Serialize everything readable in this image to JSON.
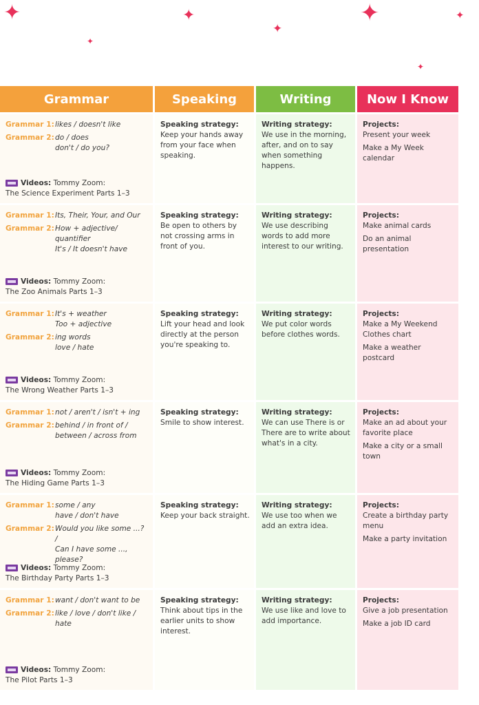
{
  "colors": {
    "grammar": "#f4a13c",
    "speaking": "#f4a13c",
    "writing": "#7dbd43",
    "now_i_know": "#e8315a",
    "sparkle": "#e8315a"
  },
  "headers": {
    "grammar": "Grammar",
    "speaking": "Speaking",
    "writing": "Writing",
    "now_i_know": "Now I Know"
  },
  "rows": [
    {
      "grammar": [
        {
          "label": "Grammar 1:",
          "text": "likes / doesn't like"
        },
        {
          "label": "Grammar 2:",
          "text": "do / does\ndon't / do you?"
        }
      ],
      "videos_label": "Videos:",
      "videos_text": "Tommy Zoom:\nThe Science Experiment Parts 1–3",
      "speaking_head": "Speaking strategy:",
      "speaking_body": "Keep your hands away from your face when speaking.",
      "writing_head": "Writing strategy:",
      "writing_body": "We use in the morning, after, and on to say when something happens.",
      "projects_head": "Projects:",
      "projects": [
        "Present your week",
        "Make a My Week calendar"
      ]
    },
    {
      "grammar": [
        {
          "label": "Grammar 1:",
          "text": "Its, Their, Your, and Our"
        },
        {
          "label": "Grammar 2:",
          "text": "How + adjective/\nquantifier\nIt's / It doesn't have"
        }
      ],
      "videos_label": "Videos:",
      "videos_text": "Tommy Zoom:\nThe Zoo Animals Parts 1–3",
      "speaking_head": "Speaking strategy:",
      "speaking_body": "Be open to others by not crossing arms in front of you.",
      "writing_head": "Writing strategy:",
      "writing_body": "We use describing words to add more interest to our writing.",
      "projects_head": "Projects:",
      "projects": [
        "Make animal cards",
        "Do an animal presentation"
      ]
    },
    {
      "grammar": [
        {
          "label": "Grammar 1:",
          "text": "It's + weather\nToo + adjective"
        },
        {
          "label": "Grammar 2:",
          "text": "ing words\nlove / hate"
        }
      ],
      "videos_label": "Videos:",
      "videos_text": "Tommy Zoom:\nThe Wrong Weather Parts 1–3",
      "speaking_head": "Speaking strategy:",
      "speaking_body": "Lift your head and look directly at the person you're speaking to.",
      "writing_head": "Writing strategy:",
      "writing_body": "We put color words before clothes words.",
      "projects_head": "Projects:",
      "projects": [
        "Make a My Weekend Clothes chart",
        "Make a weather postcard"
      ]
    },
    {
      "grammar": [
        {
          "label": "Grammar 1:",
          "text": "not / aren't / isn't + ing"
        },
        {
          "label": "Grammar 2:",
          "text": "behind / in front of /\nbetween / across from"
        }
      ],
      "videos_label": "Videos:",
      "videos_text": "Tommy Zoom:\nThe Hiding Game Parts 1–3",
      "speaking_head": "Speaking strategy:",
      "speaking_body": "Smile to show interest.",
      "writing_head": "Writing strategy:",
      "writing_body": "We can use There is or There are to write about what's in a city.",
      "projects_head": "Projects:",
      "projects": [
        "Make an ad about your favorite place",
        "Make a city or a small town"
      ]
    },
    {
      "grammar": [
        {
          "label": "Grammar 1:",
          "text": "some / any\nhave / don't have"
        },
        {
          "label": "Grammar 2:",
          "text": "Would you like some ...? /\nCan I have some ...,\nplease?"
        }
      ],
      "videos_label": "Videos:",
      "videos_text": "Tommy Zoom:\nThe Birthday Party Parts 1–3",
      "speaking_head": "Speaking strategy:",
      "speaking_body": "Keep your back straight.",
      "writing_head": "Writing strategy:",
      "writing_body": "We use too when we add an extra idea.",
      "projects_head": "Projects:",
      "projects": [
        "Create a birthday party menu",
        "Make a party invitation"
      ]
    },
    {
      "grammar": [
        {
          "label": "Grammar 1:",
          "text": "want / don't want to be"
        },
        {
          "label": "Grammar 2:",
          "text": "like / love / don't like /\nhate"
        }
      ],
      "videos_label": "Videos:",
      "videos_text": "Tommy Zoom:\nThe Pilot Parts 1–3",
      "speaking_head": "Speaking strategy:",
      "speaking_body": "Think about tips in the earlier units to show interest.",
      "writing_head": "Writing strategy:",
      "writing_body": "We use like and love to add importance.",
      "projects_head": "Projects:",
      "projects": [
        "Give a job presentation",
        "Make a job ID card"
      ]
    }
  ]
}
